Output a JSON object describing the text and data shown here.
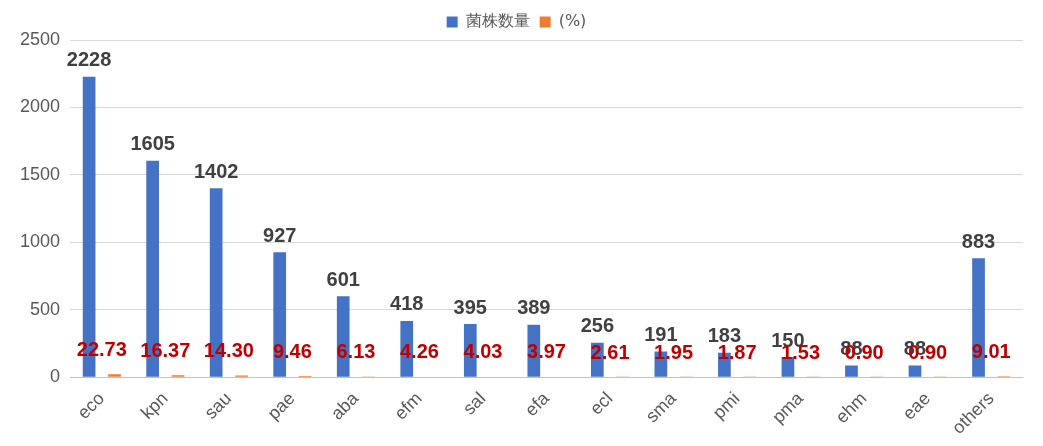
{
  "chart_data": {
    "type": "bar",
    "categories": [
      "eco",
      "kpn",
      "sau",
      "pae",
      "aba",
      "efm",
      "sal",
      "efa",
      "ecl",
      "sma",
      "pmi",
      "pma",
      "ehm",
      "eae",
      "others"
    ],
    "series": [
      {
        "name": "菌株数量",
        "color": "#4472c4",
        "values": [
          2228,
          1605,
          1402,
          927,
          601,
          418,
          395,
          389,
          256,
          191,
          183,
          150,
          88,
          88,
          883
        ],
        "value_labels": [
          "2228",
          "1605",
          "1402",
          "927",
          "601",
          "418",
          "395",
          "389",
          "256",
          "191",
          "183",
          "150",
          "88",
          "88",
          "883"
        ]
      },
      {
        "name": "(%)",
        "color": "#ed7d31",
        "values": [
          22.73,
          16.37,
          14.3,
          9.46,
          6.13,
          4.26,
          4.03,
          3.97,
          2.61,
          1.95,
          1.87,
          1.53,
          0.9,
          0.9,
          9.01
        ],
        "value_labels": [
          "22.73",
          "16.37",
          "14.30",
          "9.46",
          "6.13",
          "4.26",
          "4.03",
          "3.97",
          "2.61",
          "1.95",
          "1.87",
          "1.53",
          "0.90",
          "0.90",
          "9.01"
        ]
      }
    ],
    "ylim": [
      0,
      2500
    ],
    "yticks": [
      0,
      500,
      1000,
      1500,
      2000,
      2500
    ],
    "grid": "y",
    "legend": "top"
  }
}
